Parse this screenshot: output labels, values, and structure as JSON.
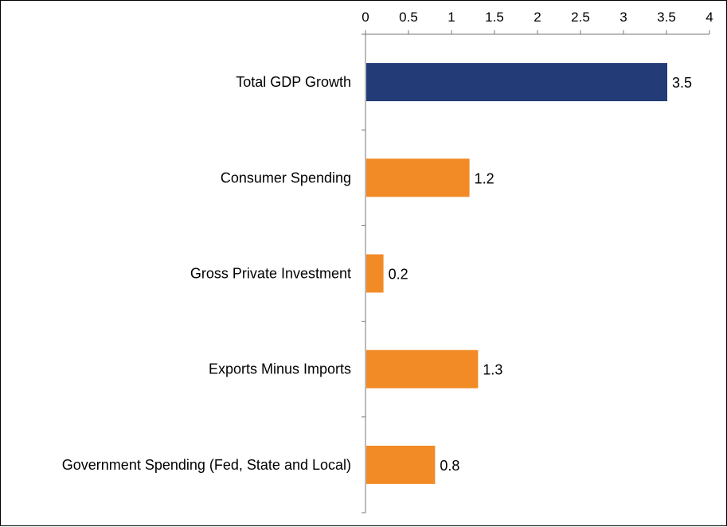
{
  "chart_data": {
    "type": "bar",
    "orientation": "horizontal",
    "x_axis_position": "top",
    "categories": [
      "Total GDP Growth",
      "Consumer Spending",
      "Gross Private Investment",
      "Exports Minus Imports",
      "Government Spending (Fed, State and Local)"
    ],
    "values": [
      3.5,
      1.2,
      0.2,
      1.3,
      0.8
    ],
    "data_labels": [
      "3.5",
      "1.2",
      "0.2",
      "1.3",
      "0.8"
    ],
    "bar_colors": [
      "#233b77",
      "#f28a26",
      "#f28a26",
      "#f28a26",
      "#f28a26"
    ],
    "xlim": [
      0,
      4
    ],
    "x_ticks": [
      0,
      0.5,
      1,
      1.5,
      2,
      2.5,
      3,
      3.5,
      4
    ],
    "x_tick_labels": [
      "0",
      "0.5",
      "1",
      "1.5",
      "2",
      "2.5",
      "3",
      "3.5",
      "4"
    ],
    "grid": false,
    "legend": "none"
  }
}
